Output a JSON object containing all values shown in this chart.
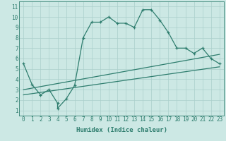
{
  "title": "",
  "xlabel": "Humidex (Indice chaleur)",
  "ylabel": "",
  "xlim": [
    -0.5,
    23.5
  ],
  "ylim": [
    0.5,
    11.5
  ],
  "xticks": [
    0,
    1,
    2,
    3,
    4,
    5,
    6,
    7,
    8,
    9,
    10,
    11,
    12,
    13,
    14,
    15,
    16,
    17,
    18,
    19,
    20,
    21,
    22,
    23
  ],
  "yticks": [
    1,
    2,
    3,
    4,
    5,
    6,
    7,
    8,
    9,
    10,
    11
  ],
  "bg_color": "#cce8e4",
  "line_color": "#2e7d6e",
  "grid_color": "#aacfcb",
  "main_x": [
    0,
    1,
    2,
    3,
    4,
    4,
    5,
    6,
    7,
    8,
    9,
    10,
    11,
    12,
    13,
    14,
    15,
    16,
    17,
    18,
    19,
    20,
    21,
    22,
    23
  ],
  "main_y": [
    5.5,
    3.5,
    2.5,
    3.0,
    1.7,
    1.2,
    2.1,
    3.4,
    8.0,
    9.5,
    9.5,
    10.0,
    9.4,
    9.4,
    9.0,
    10.7,
    10.7,
    9.7,
    8.5,
    7.0,
    7.0,
    6.5,
    7.0,
    6.0,
    5.5
  ],
  "line2_x": [
    0,
    23
  ],
  "line2_y": [
    3.0,
    6.4
  ],
  "line3_x": [
    0,
    23
  ],
  "line3_y": [
    2.5,
    5.2
  ],
  "fontsize_label": 6.5,
  "fontsize_tick": 5.5,
  "lw": 0.9
}
